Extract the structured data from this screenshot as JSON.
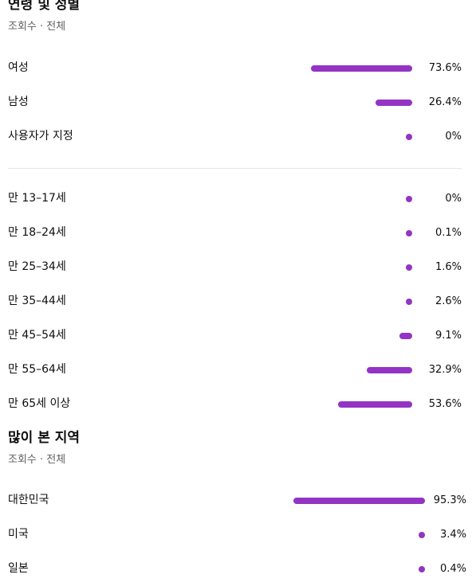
{
  "bar_color": "#9334c4",
  "sections": [
    {
      "title": "연령 및 성별",
      "subtitle": "조회수 · 전체",
      "groups": [
        [
          {
            "label": "여성",
            "value": 73.6,
            "value_label": "73.6%"
          },
          {
            "label": "남성",
            "value": 26.4,
            "value_label": "26.4%"
          },
          {
            "label": "사용자가 지정",
            "value": 0,
            "value_label": "0%"
          }
        ],
        [
          {
            "label": "만 13–17세",
            "value": 0,
            "value_label": "0%"
          },
          {
            "label": "만 18–24세",
            "value": 0.1,
            "value_label": "0.1%"
          },
          {
            "label": "만 25–34세",
            "value": 1.6,
            "value_label": "1.6%"
          },
          {
            "label": "만 35–44세",
            "value": 2.6,
            "value_label": "2.6%"
          },
          {
            "label": "만 45–54세",
            "value": 9.1,
            "value_label": "9.1%"
          },
          {
            "label": "만 55–64세",
            "value": 32.9,
            "value_label": "32.9%"
          },
          {
            "label": "만 65세 이상",
            "value": 53.6,
            "value_label": "53.6%"
          }
        ]
      ]
    },
    {
      "title": "많이 본 지역",
      "subtitle": "조회수 · 전체",
      "groups": [
        [
          {
            "label": "대한민국",
            "value": 95.3,
            "value_label": "95.3%"
          },
          {
            "label": "미국",
            "value": 3.4,
            "value_label": "3.4%"
          },
          {
            "label": "일본",
            "value": 0.4,
            "value_label": "0.4%"
          }
        ]
      ]
    }
  ]
}
